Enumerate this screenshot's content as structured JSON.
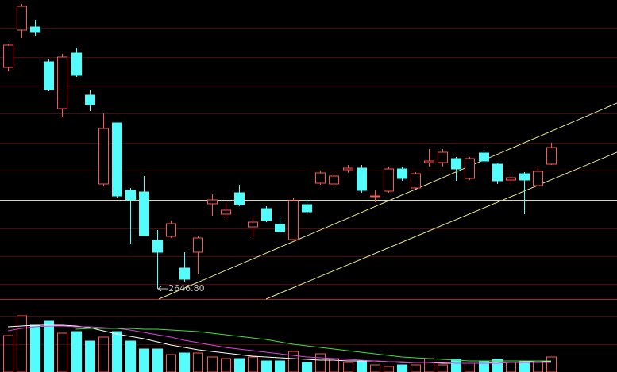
{
  "chart_data": {
    "type": "candlestick",
    "annotation": "2646.80",
    "up_color": "#ff5555",
    "down_color": "#54fcfc",
    "open": [
      3483.8,
      3624.8,
      3636.8,
      3504.8,
      3327.8,
      3537.8,
      3378.8,
      3042.8,
      3273.8,
      3018.8,
      3012.8,
      2829.8,
      2844.8,
      2724.8,
      2784.8,
      2967.8,
      2928.8,
      3009.8,
      2880.8,
      2949.8,
      2889.8,
      2832.8,
      2964.8,
      3045.8,
      3042.8,
      3096.8,
      3102.8,
      2994.8,
      3015.8,
      3099.8,
      3027.8,
      3123.8,
      3123.8,
      3138.8,
      3063.8,
      3159.8,
      3117.8,
      3057.8,
      3081.8,
      3036.8,
      3117.8
    ],
    "high": [
      3573.8,
      3723.8,
      3663.8,
      3513.8,
      3534.8,
      3558.8,
      3399.8,
      3309.8,
      3273.8,
      3027.8,
      3072.8,
      2868.8,
      2904.8,
      2784.8,
      2844.8,
      3003.8,
      2973.8,
      3039.8,
      2922.8,
      2958.8,
      2913.8,
      2988.8,
      2982.8,
      3093.8,
      3078.8,
      3114.8,
      3114.8,
      3018.8,
      3108.8,
      3108.8,
      3087.8,
      3174.8,
      3174.8,
      3144.8,
      3144.8,
      3168.8,
      3123.8,
      3078.8,
      3087.8,
      3108.8,
      3198.8
    ],
    "low": [
      3468.8,
      3594.8,
      3603.8,
      3393.8,
      3294.8,
      3447.8,
      3318.8,
      3033.8,
      2988.8,
      2814.8,
      2847.8,
      2646.8,
      2838.8,
      2673.8,
      2703.8,
      2922.8,
      2913.8,
      2958.8,
      2838.8,
      2898.8,
      2859.8,
      2829.8,
      2928.8,
      3039.8,
      3033.8,
      3084.8,
      3009.8,
      2973.8,
      3009.8,
      3054.8,
      3024.8,
      3108.8,
      3108.8,
      3054.8,
      3057.8,
      3123.8,
      3042.8,
      3042.8,
      2928.8,
      3033.8,
      3114.8
    ],
    "close": [
      3567.8,
      3714.8,
      3618.8,
      3399.8,
      3522.8,
      3453.8,
      3342.8,
      3252.8,
      2997.8,
      2982.8,
      2847.8,
      2784.8,
      2892.8,
      2682.8,
      2838.8,
      2982.8,
      2943.8,
      2964.8,
      2898.8,
      2904.8,
      2862.8,
      2979.8,
      2937.8,
      3084.8,
      3072.8,
      3102.8,
      3018.8,
      2997.8,
      3099.8,
      3063.8,
      3081.8,
      3129.8,
      3162.8,
      3099.8,
      3138.8,
      3129.8,
      3054.8,
      3066.8,
      3057.8,
      3090.8,
      3180.8
    ],
    "ylim": [
      2604.8,
      3738.8
    ],
    "reference_line": 2982.8,
    "reference_color": "#d8d8b0",
    "volume": [
      46,
      71,
      59,
      64,
      49,
      51,
      39,
      44,
      51,
      39,
      29,
      29,
      22,
      24,
      24,
      19,
      17,
      17,
      19,
      14,
      14,
      26,
      12,
      23,
      17,
      12,
      14,
      9,
      7,
      9,
      9,
      17,
      9,
      16,
      11,
      14,
      16,
      12,
      14,
      14,
      19
    ],
    "volume_ylim": [
      0,
      91
    ],
    "volume_ma": [
      {
        "color": "#ffffff",
        "values": [
          57,
          58,
          59,
          59,
          59,
          58,
          56,
          52,
          48,
          45,
          42,
          38,
          34,
          31,
          28,
          26,
          24,
          22,
          20,
          19,
          18,
          17,
          16,
          15,
          15,
          14,
          14,
          14,
          13,
          12,
          12,
          12,
          11,
          11,
          11,
          11,
          12,
          12,
          13,
          14,
          13
        ]
      },
      {
        "color": "#e040e0",
        "values": [
          52,
          55,
          57,
          58,
          58,
          57,
          57,
          56,
          55,
          53,
          50,
          47,
          44,
          40,
          37,
          34,
          31,
          29,
          27,
          25,
          23,
          21,
          19,
          18,
          17,
          16,
          15,
          14,
          13,
          13,
          12,
          12,
          12,
          11,
          11,
          11,
          11,
          12,
          12,
          12,
          12
        ]
      },
      {
        "color": "#40e040",
        "values": [
          null,
          null,
          null,
          null,
          null,
          54,
          55,
          55,
          55,
          55,
          54,
          54,
          53,
          52,
          51,
          49,
          47,
          45,
          43,
          41,
          38,
          35,
          33,
          31,
          29,
          27,
          25,
          23,
          21,
          19,
          18,
          17,
          16,
          15,
          14,
          14,
          14,
          14,
          14,
          14,
          14
        ]
      }
    ]
  }
}
